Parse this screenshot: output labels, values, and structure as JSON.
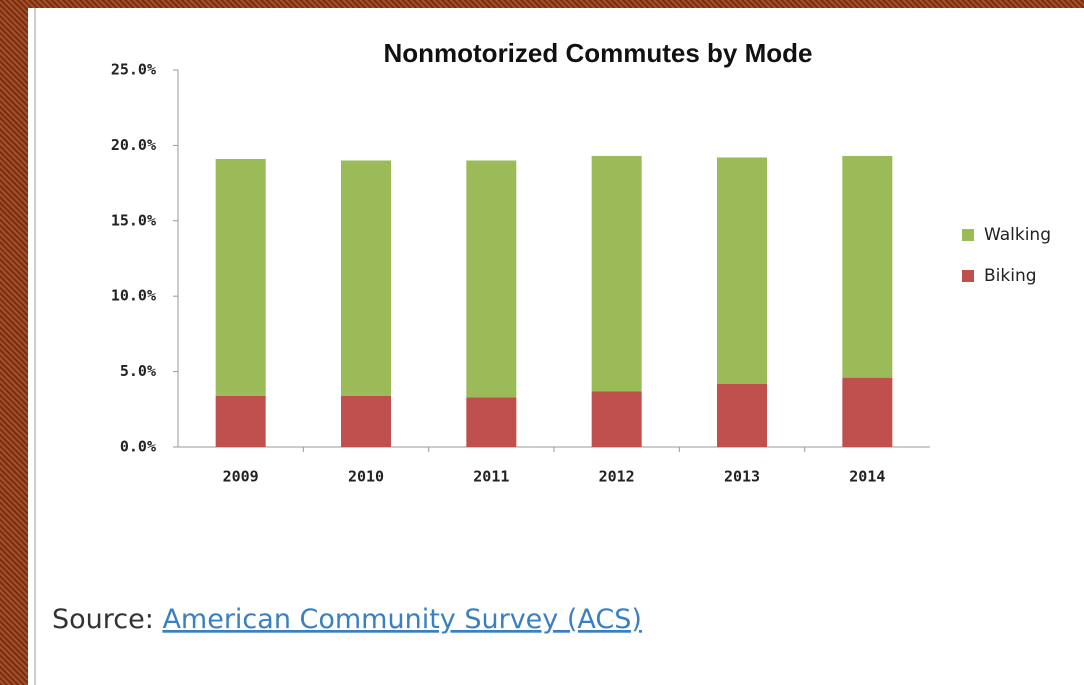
{
  "chart_data": {
    "type": "stacked_bar",
    "title": "Nonmotorized Commutes by Mode",
    "categories": [
      "2009",
      "2010",
      "2011",
      "2012",
      "2013",
      "2014"
    ],
    "series": [
      {
        "name": "Biking",
        "color": "#c0504d",
        "values": [
          3.4,
          3.4,
          3.3,
          3.7,
          4.2,
          4.6
        ]
      },
      {
        "name": "Walking",
        "color": "#9bbb59",
        "values": [
          15.7,
          15.6,
          15.7,
          15.6,
          15.0,
          14.7
        ]
      }
    ],
    "ylim": [
      0,
      25
    ],
    "yticks": [
      {
        "value": 0,
        "label": "0.0%"
      },
      {
        "value": 5,
        "label": "5.0%"
      },
      {
        "value": 10,
        "label": "10.0%"
      },
      {
        "value": 15,
        "label": "15.0%"
      },
      {
        "value": 20,
        "label": "20.0%"
      },
      {
        "value": 25,
        "label": "25.0%"
      }
    ],
    "legend": "right",
    "grid": false
  },
  "source": {
    "prefix": "Source:",
    "link": "American Community Survey (ACS)"
  }
}
